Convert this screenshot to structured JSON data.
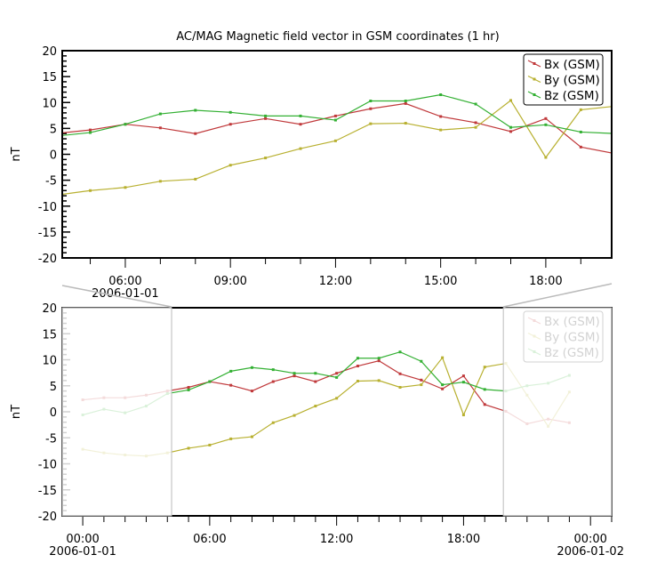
{
  "chart_data": [
    {
      "type": "line",
      "title": "AC/MAG  Magnetic field vector in GSM coordinates (1 hr)",
      "ylabel": "nT",
      "ylim": [
        -20,
        20
      ],
      "xlim_hours": [
        4.2,
        19.88
      ],
      "x_ticks": [
        {
          "hour": 6,
          "label": "06:00",
          "sublabel": "2006-01-01"
        },
        {
          "hour": 9,
          "label": "09:00"
        },
        {
          "hour": 12,
          "label": "12:00"
        },
        {
          "hour": 15,
          "label": "15:00"
        },
        {
          "hour": 18,
          "label": "18:00"
        }
      ],
      "y_ticks": [
        20,
        15,
        10,
        5,
        0,
        -5,
        -10,
        -15,
        -20
      ],
      "legend": "top-right",
      "grid": false
    },
    {
      "type": "line",
      "ylabel": "nT",
      "ylim": [
        -20,
        20
      ],
      "xlim_hours": [
        -0.97,
        25.0
      ],
      "highlight_window_hours": [
        4.2,
        19.88
      ],
      "x_ticks": [
        {
          "hour": 0,
          "label": "00:00",
          "sublabel": "2006-01-01"
        },
        {
          "hour": 6,
          "label": "06:00"
        },
        {
          "hour": 12,
          "label": "12:00"
        },
        {
          "hour": 18,
          "label": "18:00"
        },
        {
          "hour": 24,
          "label": "00:00",
          "sublabel": "2006-01-02"
        }
      ],
      "y_ticks": [
        20,
        15,
        10,
        5,
        0,
        -5,
        -10,
        -15,
        -20
      ],
      "legend": "top-right",
      "grid": false
    }
  ],
  "series": [
    {
      "name": "Bx (GSM)",
      "color": "#c0393b",
      "hours": [
        0,
        1,
        2,
        3,
        4,
        5,
        6,
        7,
        8,
        9,
        10,
        11,
        12,
        13,
        14,
        15,
        16,
        17,
        18,
        19,
        20,
        21,
        22,
        23
      ],
      "values": [
        2.3,
        2.7,
        2.7,
        3.2,
        4.0,
        4.7,
        5.8,
        5.1,
        4.0,
        5.8,
        6.9,
        5.8,
        7.4,
        8.8,
        9.8,
        7.3,
        6.1,
        4.4,
        6.9,
        1.4,
        0.1,
        -2.3,
        -1.4,
        -2.1
      ]
    },
    {
      "name": "By (GSM)",
      "color": "#b8b030",
      "hours": [
        0,
        1,
        2,
        3,
        4,
        5,
        6,
        7,
        8,
        9,
        10,
        11,
        12,
        13,
        14,
        15,
        16,
        17,
        18,
        19,
        20,
        21,
        22,
        23
      ],
      "values": [
        -7.2,
        -7.9,
        -8.3,
        -8.5,
        -7.9,
        -7.0,
        -6.4,
        -5.2,
        -4.8,
        -2.1,
        -0.7,
        1.1,
        2.6,
        5.9,
        6.0,
        4.7,
        5.2,
        10.4,
        -0.6,
        8.6,
        9.3,
        3.2,
        -2.8,
        3.8
      ]
    },
    {
      "name": "Bz (GSM)",
      "color": "#33b033",
      "hours": [
        0,
        1,
        2,
        3,
        4,
        5,
        6,
        7,
        8,
        9,
        10,
        11,
        12,
        13,
        14,
        15,
        16,
        17,
        18,
        19,
        20,
        21,
        22,
        23
      ],
      "values": [
        -0.6,
        0.5,
        -0.2,
        1.1,
        3.5,
        4.2,
        5.8,
        7.8,
        8.5,
        8.1,
        7.4,
        7.4,
        6.6,
        10.3,
        10.3,
        11.5,
        9.7,
        5.2,
        5.7,
        4.3,
        4.0,
        5.0,
        5.5,
        7.0
      ]
    }
  ]
}
